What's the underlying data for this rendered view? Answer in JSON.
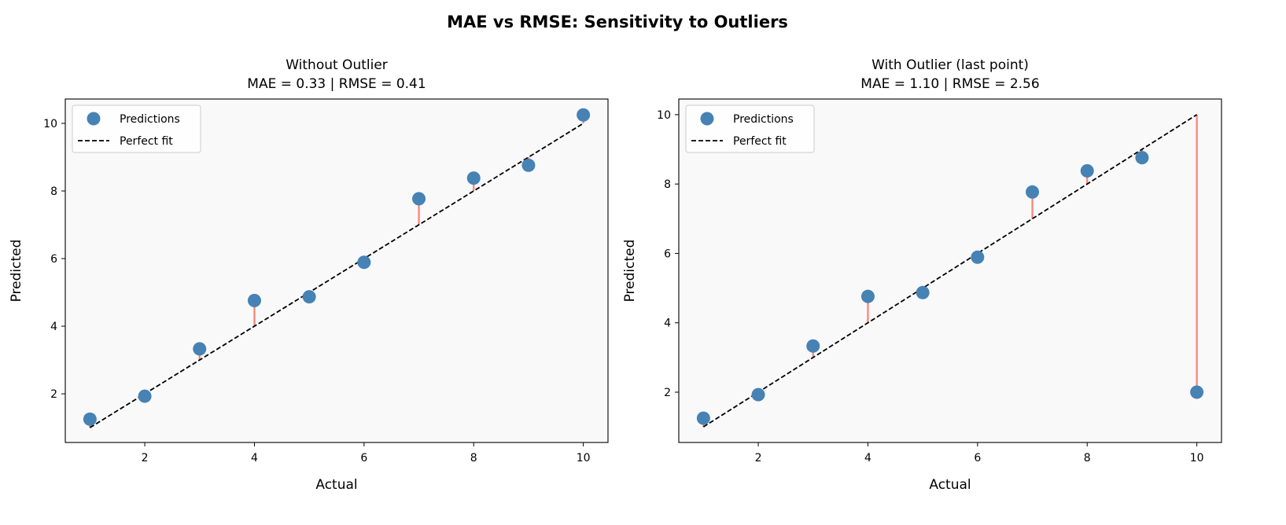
{
  "suptitle": "MAE vs RMSE: Sensitivity to Outliers",
  "chart_data": [
    {
      "type": "scatter",
      "title": "Without Outlier\nMAE = 0.33   |   RMSE = 0.41",
      "title_lines": [
        "Without Outlier",
        "MAE = 0.33   |   RMSE = 0.41"
      ],
      "xlabel": "Actual",
      "ylabel": "Predicted",
      "xlim": [
        0.55,
        10.45
      ],
      "ylim": [
        0.56,
        10.72
      ],
      "xticks": [
        2,
        4,
        6,
        8,
        10
      ],
      "yticks": [
        2,
        4,
        6,
        8,
        10
      ],
      "grid": false,
      "legend": "top-left",
      "series": [
        {
          "name": "Predictions",
          "kind": "points",
          "color": "#4682B4",
          "x": [
            1,
            2,
            3,
            4,
            5,
            6,
            7,
            8,
            9,
            10
          ],
          "y": [
            1.25,
            1.93,
            3.33,
            4.76,
            4.87,
            5.89,
            7.77,
            8.38,
            8.76,
            10.25
          ]
        },
        {
          "name": "Perfect fit",
          "kind": "dashed-line",
          "color": "#000000",
          "x": [
            1,
            10
          ],
          "y": [
            1,
            10
          ]
        }
      ],
      "residual_color": "#FA8072"
    },
    {
      "type": "scatter",
      "title": "With Outlier (last point)\nMAE = 1.10   |   RMSE = 2.56",
      "title_lines": [
        "With Outlier (last point)",
        "MAE = 1.10   |   RMSE = 2.56"
      ],
      "xlabel": "Actual",
      "ylabel": "Predicted",
      "xlim": [
        0.55,
        10.45
      ],
      "ylim": [
        0.55,
        10.45
      ],
      "xticks": [
        2,
        4,
        6,
        8,
        10
      ],
      "yticks": [
        2,
        4,
        6,
        8,
        10
      ],
      "grid": false,
      "legend": "top-left",
      "series": [
        {
          "name": "Predictions",
          "kind": "points",
          "color": "#4682B4",
          "x": [
            1,
            2,
            3,
            4,
            5,
            6,
            7,
            8,
            9,
            10
          ],
          "y": [
            1.25,
            1.93,
            3.33,
            4.76,
            4.87,
            5.89,
            7.77,
            8.38,
            8.76,
            2.0
          ]
        },
        {
          "name": "Perfect fit",
          "kind": "dashed-line",
          "color": "#000000",
          "x": [
            1,
            10
          ],
          "y": [
            1,
            10
          ]
        }
      ],
      "residual_color": "#FA8072"
    }
  ]
}
